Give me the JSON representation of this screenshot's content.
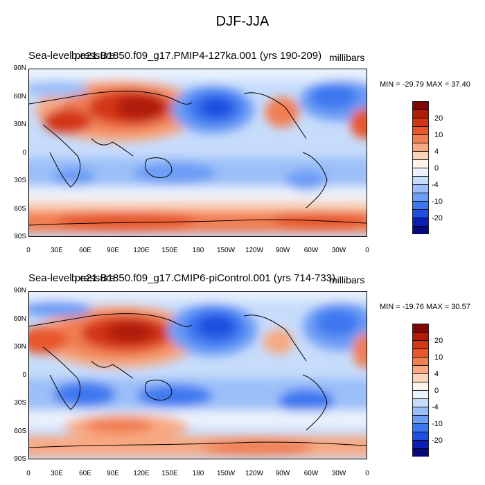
{
  "title": "DJF-JJA",
  "colorbar": {
    "colors": [
      "#08087a",
      "#0a1fb5",
      "#1f4fe0",
      "#3e78f0",
      "#6d9df5",
      "#9bbff8",
      "#c7dcfb",
      "#ebf2fd",
      "#fdf3ea",
      "#fbd3b8",
      "#f7a982",
      "#f17f52",
      "#e8562b",
      "#d33614",
      "#b01c08",
      "#800505"
    ],
    "labels": [
      "20",
      "10",
      "4",
      "0",
      "-4",
      "-10",
      "-20"
    ]
  },
  "lat_ticks": [
    "90N",
    "60N",
    "30N",
    "0",
    "30S",
    "60S",
    "90S"
  ],
  "lon_ticks": [
    "0",
    "30E",
    "60E",
    "90E",
    "120E",
    "150E",
    "180",
    "150W",
    "120W",
    "90W",
    "60W",
    "30W",
    "0"
  ],
  "panels": [
    {
      "variable": "Sea-level pressure",
      "case": "b.e21.B1850.f09_g17.PMIP4-127ka.001 (yrs 190-209)",
      "units": "millibars",
      "min_max": "MIN = -29.79 MAX =  37.40"
    },
    {
      "variable": "Sea-level pressure",
      "case": "b.e21.B1850.f09_g17.CMIP6-piControl.001 (yrs 714-733)",
      "units": "millibars",
      "min_max": "MIN = -19.76 MAX =  30.57"
    }
  ]
}
